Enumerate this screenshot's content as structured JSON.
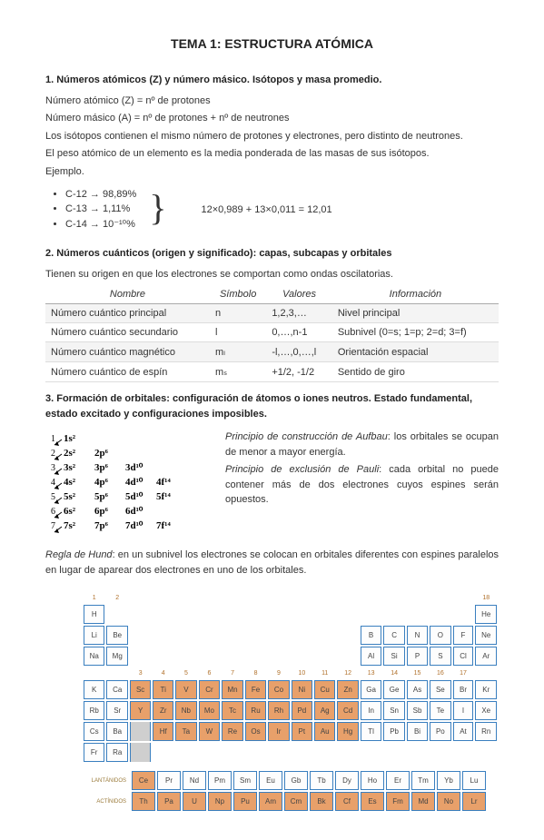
{
  "title": "TEMA 1: ESTRUCTURA ATÓMICA",
  "s1": {
    "heading": "1. Números atómicos (Z) y número másico. Isótopos y masa promedio.",
    "l1": "Número atómico (Z) = nº de protones",
    "l2": "Número másico (A) = nº de protones + nº de neutrones",
    "l3": "Los isótopos contienen el mismo número de protones y electrones, pero distinto de neutrones.",
    "l4": "El peso atómico de un elemento es la media ponderada de las masas de sus isótopos.",
    "l5": "Ejemplo.",
    "iso": [
      "C-12 → 98,89%",
      "C-13 → 1,11%",
      "C-14 → 10⁻¹⁰%"
    ],
    "calc": "12×0,989 + 13×0,011 = 12,01"
  },
  "s2": {
    "heading": "2. Números cuánticos (origen y significado): capas, subcapas y orbitales",
    "intro": "Tienen su origen en que los electrones se comportan como ondas oscilatorias.",
    "headers": {
      "c1": "Nombre",
      "c2": "Símbolo",
      "c3": "Valores",
      "c4": "Información"
    },
    "rows": [
      {
        "n": "Número cuántico principal",
        "s": "n",
        "v": "1,2,3,…",
        "i": "Nivel principal"
      },
      {
        "n": "Número cuántico secundario",
        "s": "l",
        "v": "0,…,n-1",
        "i": "Subnivel (0=s; 1=p; 2=d; 3=f)"
      },
      {
        "n": "Número cuántico magnético",
        "s": "mₗ",
        "v": "-l,…,0,…,l",
        "i": "Orientación espacial"
      },
      {
        "n": "Número cuántico de espín",
        "s": "mₛ",
        "v": "+1/2, -1/2",
        "i": "Sentido de giro"
      }
    ]
  },
  "s3": {
    "heading": "3. Formación de orbitales: configuración de átomos o iones neutros. Estado fundamental, estado excitado y configuraciones imposibles.",
    "aufbau_name": "Principio de construcción de Aufbau",
    "aufbau_text": ": los orbitales se ocupan de menor a mayor energía.",
    "pauli_name": "Principio de exclusión de Pauli",
    "pauli_text": ": cada orbital no puede contener más de dos electrones cuyos espines serán opuestos.",
    "aufbau_rows": [
      [
        "1s²"
      ],
      [
        "2s²",
        "2p⁶"
      ],
      [
        "3s²",
        "3p⁶",
        "3d¹⁰"
      ],
      [
        "4s²",
        "4p⁶",
        "4d¹⁰",
        "4f¹⁴"
      ],
      [
        "5s²",
        "5p⁶",
        "5d¹⁰",
        "5f¹⁴"
      ],
      [
        "6s²",
        "6p⁶",
        "6d¹⁰"
      ],
      [
        "7s²",
        "7p⁶",
        "7d¹⁰",
        "7f¹⁴"
      ]
    ]
  },
  "hund": {
    "name": "Regla de Hund",
    "text": ": en un subnivel los electrones se colocan en orbitales diferentes con espines paralelos en lugar de aparear dos electrones en uno de los orbitales."
  },
  "ptable": {
    "group_nums_left": [
      "1",
      "2"
    ],
    "group_nums_mid": [
      "3",
      "4",
      "5",
      "6",
      "7",
      "8",
      "9",
      "10",
      "11",
      "12"
    ],
    "group_nums_right": [
      "13",
      "14",
      "15",
      "16",
      "17",
      "18"
    ],
    "rows": [
      [
        "H",
        "",
        "",
        "",
        "",
        "",
        "",
        "",
        "",
        "",
        "",
        "",
        "",
        "",
        "",
        "",
        "",
        "He"
      ],
      [
        "Li",
        "Be",
        "",
        "",
        "",
        "",
        "",
        "",
        "",
        "",
        "",
        "",
        "B",
        "C",
        "N",
        "O",
        "F",
        "Ne"
      ],
      [
        "Na",
        "Mg",
        "",
        "",
        "",
        "",
        "",
        "",
        "",
        "",
        "",
        "",
        "Al",
        "Si",
        "P",
        "S",
        "Cl",
        "Ar"
      ],
      [
        "K",
        "Ca",
        "Sc",
        "Ti",
        "V",
        "Cr",
        "Mn",
        "Fe",
        "Co",
        "Ni",
        "Cu",
        "Zn",
        "Ga",
        "Ge",
        "As",
        "Se",
        "Br",
        "Kr"
      ],
      [
        "Rb",
        "Sr",
        "Y",
        "Zr",
        "Nb",
        "Mo",
        "Tc",
        "Ru",
        "Rh",
        "Pd",
        "Ag",
        "Cd",
        "In",
        "Sn",
        "Sb",
        "Te",
        "I",
        "Xe"
      ],
      [
        "Cs",
        "Ba",
        "",
        "Hf",
        "Ta",
        "W",
        "Re",
        "Os",
        "Ir",
        "Pt",
        "Au",
        "Hg",
        "Tl",
        "Pb",
        "Bi",
        "Po",
        "At",
        "Rn"
      ],
      [
        "Fr",
        "Ra",
        "",
        "",
        "",
        "",
        "",
        "",
        "",
        "",
        "",
        "",
        "",
        "",
        "",
        "",
        "",
        ""
      ]
    ],
    "f_rows": [
      {
        "label": "LANTÁNIDOS",
        "cells": [
          "Ce",
          "Pr",
          "Nd",
          "Pm",
          "Sm",
          "Eu",
          "Gb",
          "Tb",
          "Dy",
          "Ho",
          "Er",
          "Tm",
          "Yb",
          "Lu"
        ]
      },
      {
        "label": "ACTÍNIDOS",
        "cells": [
          "Th",
          "Pa",
          "U",
          "Np",
          "Pu",
          "Am",
          "Cm",
          "Bk",
          "Cf",
          "Es",
          "Fm",
          "Md",
          "No",
          "Lr"
        ]
      }
    ]
  },
  "colors": {
    "d_block": "#e8a06a",
    "border": "#3a7fbf",
    "num": "#b0702a"
  }
}
